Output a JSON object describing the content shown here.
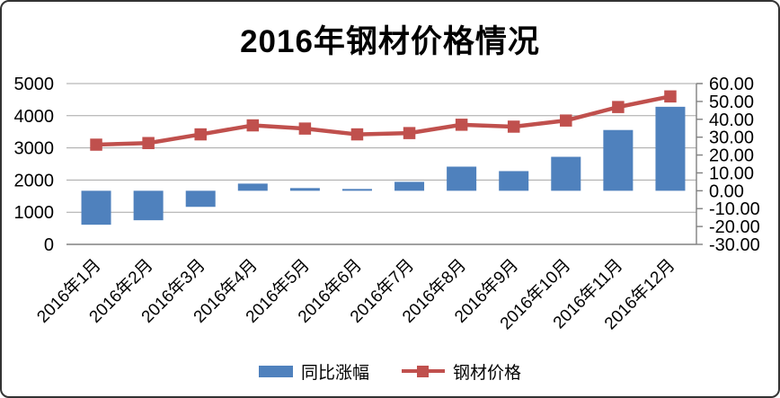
{
  "chart_data": {
    "type": "combo",
    "title": "2016年钢材价格情况",
    "categories": [
      "2016年1月",
      "2016年2月",
      "2016年3月",
      "2016年4月",
      "2016年5月",
      "2016年6月",
      "2016年7月",
      "2016年8月",
      "2016年9月",
      "2016年10月",
      "2016年11月",
      "2016年12月"
    ],
    "series": [
      {
        "name": "同比涨幅",
        "type": "bar",
        "axis": "right",
        "color": "#4f81bd",
        "values": [
          -19,
          -16.5,
          -9,
          4,
          1.5,
          1,
          5,
          13.5,
          11,
          19,
          34,
          47
        ]
      },
      {
        "name": "钢材价格",
        "type": "line",
        "axis": "left",
        "color": "#c0504d",
        "values": [
          3100,
          3150,
          3420,
          3700,
          3600,
          3420,
          3460,
          3720,
          3660,
          3850,
          4270,
          4600
        ]
      }
    ],
    "axes": {
      "left": {
        "min": 0,
        "max": 5000,
        "tick_labels": [
          "0",
          "1000",
          "2000",
          "3000",
          "4000",
          "5000"
        ]
      },
      "right": {
        "min": -30,
        "max": 60,
        "tick_labels": [
          "-30.00",
          "-20.00",
          "-10.00",
          "0.00",
          "10.00",
          "20.00",
          "30.00",
          "40.00",
          "50.00",
          "60.00"
        ]
      }
    },
    "legend_position": "bottom",
    "grid": true
  }
}
